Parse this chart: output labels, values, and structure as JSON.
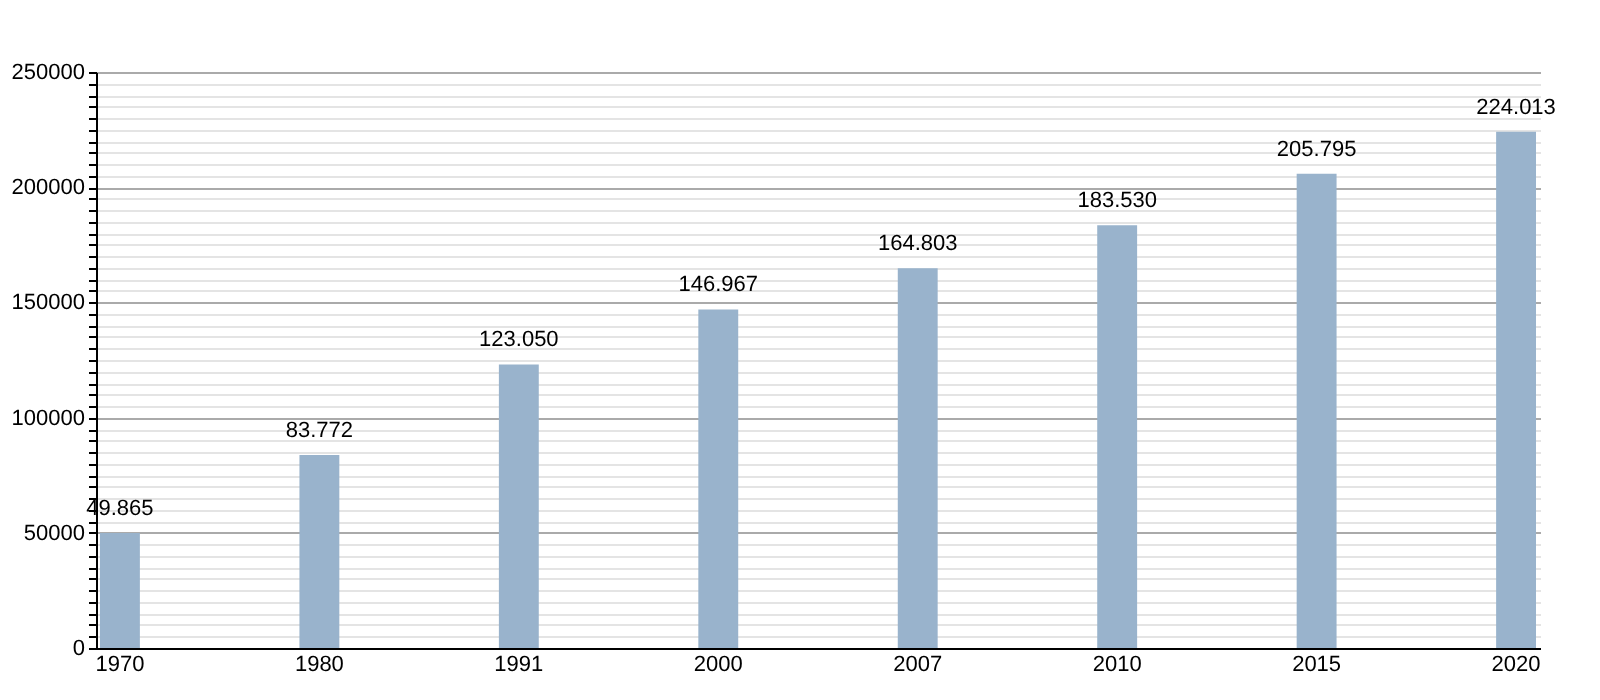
{
  "chart_data": {
    "type": "bar",
    "categories": [
      "1970",
      "1980",
      "1991",
      "2000",
      "2007",
      "2010",
      "2015",
      "2020"
    ],
    "values": [
      49865,
      83772,
      123050,
      146967,
      164803,
      183530,
      205795,
      224013
    ],
    "value_labels": [
      "49.865",
      "83.772",
      "123.050",
      "146.967",
      "164.803",
      "183.530",
      "205.795",
      "224.013"
    ],
    "color": "#99b3cc",
    "ylim": [
      0,
      250000
    ],
    "yticks": [
      0,
      {
        "value": 5000,
        "label": null
      },
      {
        "value": 10000,
        "label": null
      },
      {
        "value": 15000,
        "label": null
      },
      {
        "value": 20000,
        "label": null
      },
      {
        "value": 25000,
        "label": null
      },
      {
        "value": 30000,
        "label": null
      },
      {
        "value": 35000,
        "label": null
      },
      {
        "value": 40000,
        "label": null
      },
      {
        "value": 45000,
        "label": null
      },
      50000,
      {
        "value": 55000,
        "label": null
      },
      {
        "value": 60000,
        "label": null
      },
      {
        "value": 65000,
        "label": null
      },
      {
        "value": 70000,
        "label": null
      },
      {
        "value": 75000,
        "label": null
      },
      {
        "value": 80000,
        "label": null
      },
      {
        "value": 85000,
        "label": null
      },
      {
        "value": 90000,
        "label": null
      },
      {
        "value": 95000,
        "label": null
      },
      100000,
      {
        "value": 105000,
        "label": null
      },
      {
        "value": 110000,
        "label": null
      },
      {
        "value": 115000,
        "label": null
      },
      {
        "value": 120000,
        "label": null
      },
      {
        "value": 125000,
        "label": null
      },
      {
        "value": 130000,
        "label": null
      },
      {
        "value": 135000,
        "label": null
      },
      {
        "value": 140000,
        "label": null
      },
      {
        "value": 145000,
        "label": null
      },
      150000,
      {
        "value": 155000,
        "label": null
      },
      {
        "value": 160000,
        "label": null
      },
      {
        "value": 165000,
        "label": null
      },
      {
        "value": 170000,
        "label": null
      },
      {
        "value": 175000,
        "label": null
      },
      {
        "value": 180000,
        "label": null
      },
      {
        "value": 185000,
        "label": null
      },
      {
        "value": 190000,
        "label": null
      },
      {
        "value": 195000,
        "label": null
      },
      200000,
      {
        "value": 205000,
        "label": null
      },
      {
        "value": 210000,
        "label": null
      },
      {
        "value": 215000,
        "label": null
      },
      {
        "value": 220000,
        "label": null
      },
      {
        "value": 225000,
        "label": null
      },
      {
        "value": 230000,
        "label": null
      },
      {
        "value": 235000,
        "label": null
      },
      {
        "value": 240000,
        "label": null
      },
      {
        "value": 245000,
        "label": null
      },
      250000
    ],
    "grid": "y"
  }
}
